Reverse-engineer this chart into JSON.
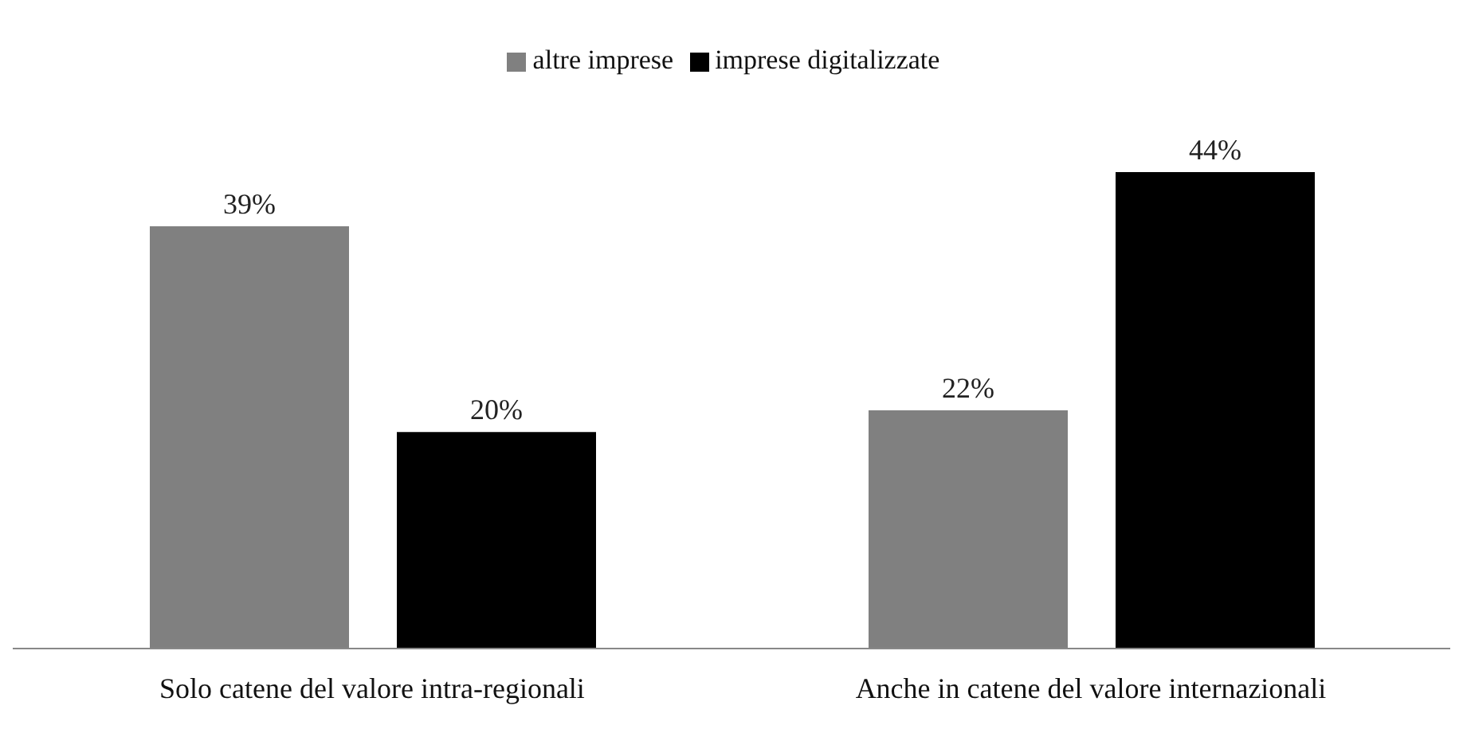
{
  "chart_data": {
    "type": "bar",
    "categories": [
      "Solo catene del valore intra-regionali",
      "Anche in catene del valore internazionali"
    ],
    "series": [
      {
        "name": "altre imprese",
        "color": "#808080",
        "values": [
          39,
          22
        ],
        "value_labels": [
          "39%",
          "22%"
        ]
      },
      {
        "name": "imprese digitalizzate",
        "color": "#000000",
        "values": [
          20,
          44
        ],
        "value_labels": [
          "20%",
          "44%"
        ]
      }
    ],
    "legend": "top",
    "grid": false
  }
}
